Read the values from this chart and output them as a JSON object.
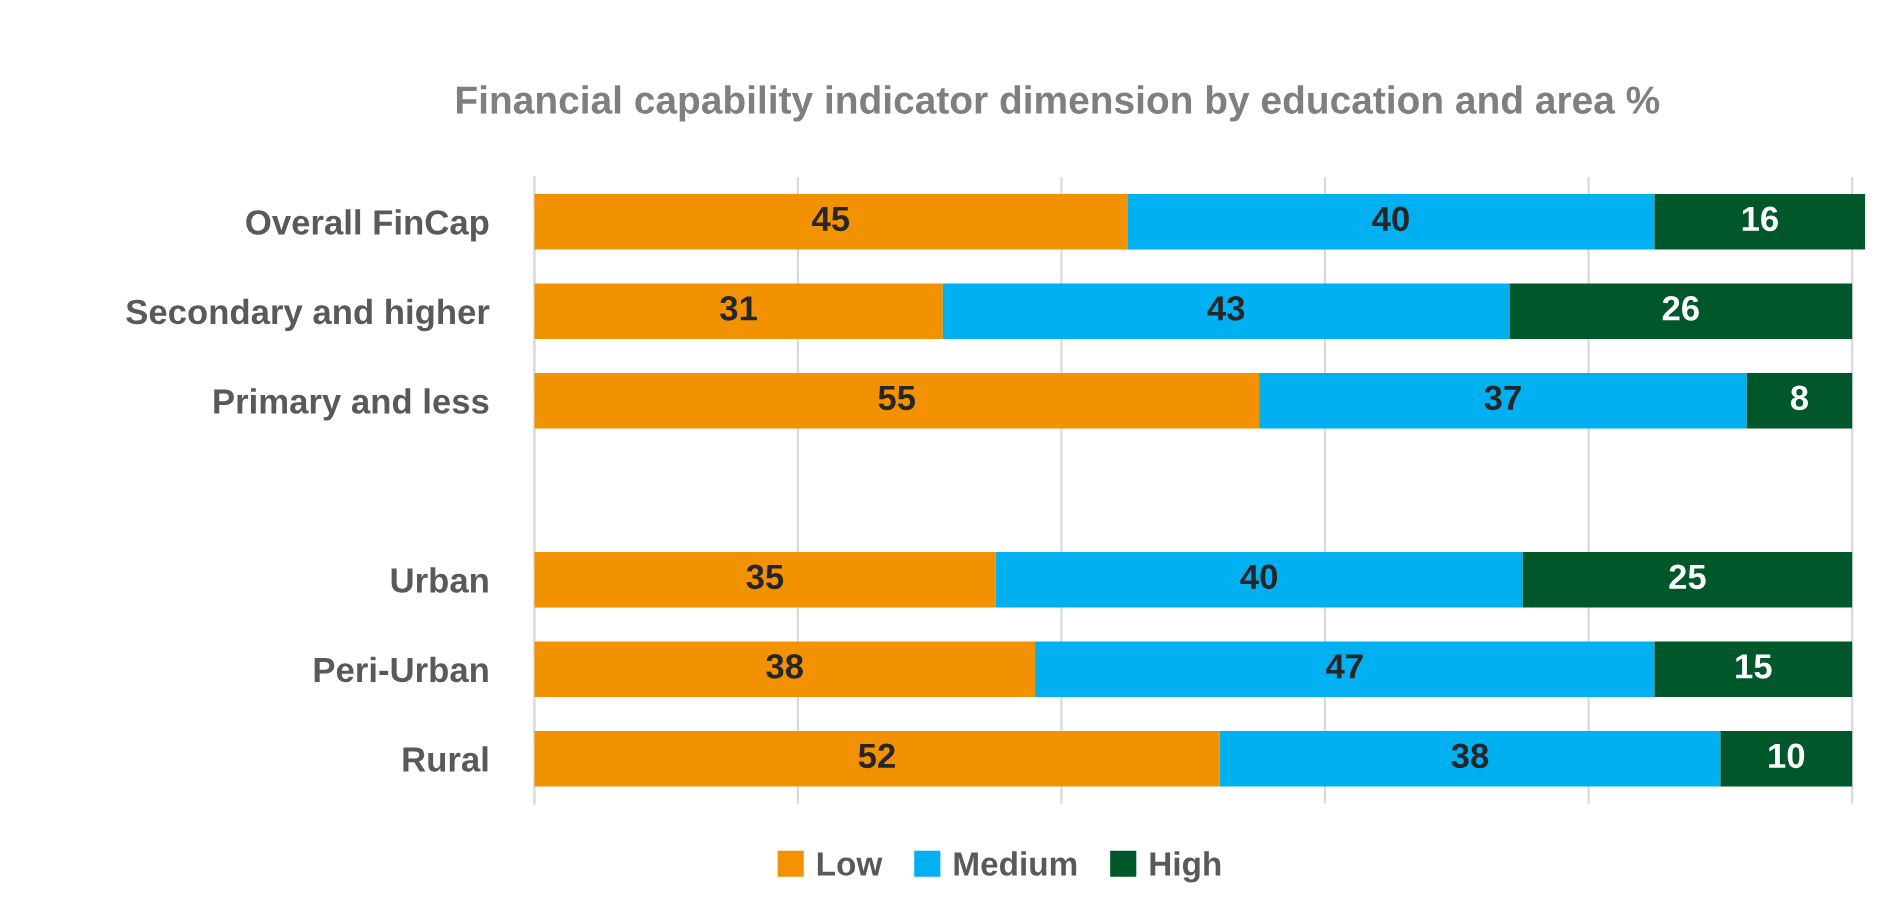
{
  "chart_data": {
    "type": "bar",
    "orientation": "horizontal",
    "stacked": true,
    "title": "Financial capability indicator dimension by education and area %",
    "categories": [
      "Overall FinCap",
      "Secondary and higher",
      "Primary and less",
      null,
      "Urban",
      "Peri-Urban",
      "Rural"
    ],
    "series": [
      {
        "name": "Low",
        "color": "#f39200",
        "values": [
          45,
          31,
          55,
          null,
          35,
          38,
          52
        ]
      },
      {
        "name": "Medium",
        "color": "#00b0f0",
        "values": [
          40,
          43,
          37,
          null,
          40,
          47,
          38
        ]
      },
      {
        "name": "High",
        "color": "#00582a",
        "values": [
          16,
          26,
          8,
          null,
          25,
          15,
          10
        ]
      }
    ],
    "xlim": [
      0,
      101
    ],
    "xticks": [
      {
        "value": 0,
        "label": null
      },
      {
        "value": 20,
        "label": null
      },
      {
        "value": 40,
        "label": null
      },
      {
        "value": 60,
        "label": null
      },
      {
        "value": 80,
        "label": null
      },
      {
        "value": 100,
        "label": null
      }
    ],
    "tick_labels": "y",
    "grid": "x",
    "legend": "bottom",
    "data_labels": true
  }
}
